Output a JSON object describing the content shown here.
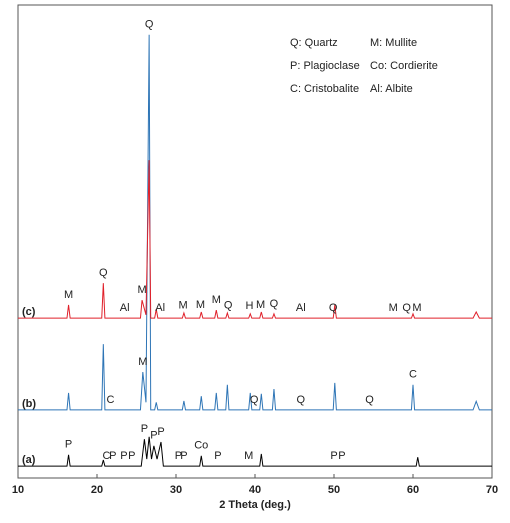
{
  "chart_data": {
    "type": "line",
    "xlabel": "2 Theta (deg.)",
    "xlim": [
      10,
      70
    ],
    "xticks": [
      10,
      20,
      30,
      40,
      50,
      60,
      70
    ],
    "ylim": [
      0,
      100
    ],
    "legend_entries": [
      "Q: Quartz",
      "M: Mullite",
      "P: Plagioclase",
      "Co: Cordierite",
      "C: Cristobalite",
      "Al: Albite"
    ],
    "series": [
      {
        "name": "(a)",
        "color": "#000000",
        "x": [
          10,
          16.2,
          16.4,
          16.6,
          20.6,
          20.8,
          21,
          25.6,
          26,
          26.3,
          26.6,
          26.9,
          27.2,
          27.6,
          28.1,
          28.4,
          33,
          33.2,
          33.4,
          40.6,
          40.8,
          41,
          60.4,
          60.6,
          60.8,
          70
        ],
        "values": [
          2.5,
          2.5,
          4.9,
          2.5,
          2.5,
          3.8,
          2.5,
          2.5,
          8.2,
          4,
          8.7,
          4,
          6.8,
          4,
          7.6,
          2.5,
          2.5,
          4.7,
          2.5,
          2.5,
          5.1,
          2.5,
          2.5,
          4.4,
          2.5,
          2.5
        ],
        "peak_labels": [
          {
            "label": "P",
            "x": 16.4
          },
          {
            "label": "C",
            "x": 21.2
          },
          {
            "label": "P",
            "x": 22
          },
          {
            "label": "P",
            "x": 23.4
          },
          {
            "label": "P",
            "x": 24.4
          },
          {
            "label": "P",
            "x": 26
          },
          {
            "label": "P",
            "x": 27.2
          },
          {
            "label": "P",
            "x": 28.1
          },
          {
            "label": "P",
            "x": 30.3
          },
          {
            "label": "P",
            "x": 31
          },
          {
            "label": "Co",
            "x": 33.2
          },
          {
            "label": "P",
            "x": 35.3
          },
          {
            "label": "M",
            "x": 39.2
          },
          {
            "label": "P",
            "x": 50
          },
          {
            "label": "P",
            "x": 51
          }
        ]
      },
      {
        "name": "(b)",
        "color": "#2e75b6",
        "x": [
          10,
          16.2,
          16.4,
          16.6,
          20.6,
          20.8,
          21,
          25.5,
          25.8,
          26.2,
          26.6,
          26.8,
          27.3,
          27.5,
          27.7,
          30.8,
          31,
          31.2,
          33,
          33.2,
          33.4,
          34.9,
          35.1,
          35.3,
          36.3,
          36.5,
          36.7,
          39.2,
          39.4,
          39.6,
          40.6,
          40.8,
          41,
          42.2,
          42.4,
          42.6,
          49.9,
          50.1,
          50.3,
          59.8,
          60,
          60.2,
          67.6,
          68,
          68.4,
          70
        ],
        "values": [
          14.4,
          14.4,
          18,
          14.4,
          14.4,
          28.3,
          14.4,
          14.4,
          22.4,
          16,
          93.7,
          14.4,
          14.4,
          16,
          14.4,
          14.4,
          16.3,
          14.4,
          14.4,
          17.3,
          14.4,
          14.4,
          18,
          14.4,
          14.4,
          19.7,
          14.4,
          14.4,
          18,
          14.4,
          14.4,
          17.8,
          14.4,
          14.4,
          18.8,
          14.4,
          14.4,
          20.1,
          14.4,
          14.4,
          19.7,
          14.4,
          14.4,
          16.2,
          14.4,
          14.4
        ],
        "peak_labels": [
          {
            "label": "C",
            "x": 21.7
          },
          {
            "label": "M",
            "x": 25.8
          },
          {
            "label": "Q",
            "x": 26.6
          },
          {
            "label": "Q",
            "x": 39.9
          },
          {
            "label": "Q",
            "x": 45.8
          },
          {
            "label": "Q",
            "x": 54.5
          },
          {
            "label": "C",
            "x": 60
          }
        ]
      },
      {
        "name": "(c)",
        "color": "#e0202a",
        "x": [
          10,
          16.2,
          16.4,
          16.6,
          20.6,
          20.8,
          21,
          25.5,
          25.7,
          26.2,
          26.6,
          26.8,
          27.3,
          27.5,
          27.7,
          30.8,
          31,
          31.2,
          33,
          33.2,
          33.4,
          34.9,
          35.1,
          35.3,
          36.3,
          36.5,
          36.7,
          39.2,
          39.4,
          39.6,
          40.6,
          40.8,
          41,
          42.2,
          42.4,
          42.6,
          49.9,
          50.1,
          50.3,
          59.8,
          60,
          60.2,
          67.6,
          68,
          68.4,
          70
        ],
        "values": [
          33.8,
          33.8,
          36.6,
          33.8,
          33.8,
          41.2,
          33.8,
          33.8,
          37.6,
          34.5,
          67.2,
          33.8,
          33.8,
          35.7,
          33.8,
          33.8,
          34.9,
          33.8,
          33.8,
          35.1,
          33.8,
          33.8,
          35.5,
          33.8,
          33.8,
          34.9,
          33.8,
          33.8,
          34.7,
          33.8,
          33.8,
          35.1,
          33.8,
          33.8,
          34.7,
          33.8,
          33.8,
          36.6,
          33.8,
          33.8,
          34.7,
          33.8,
          33.8,
          35.1,
          33.8,
          33.8
        ],
        "peak_labels": [
          {
            "label": "M",
            "x": 16.4
          },
          {
            "label": "Q",
            "x": 20.8
          },
          {
            "label": "Al",
            "x": 23.5
          },
          {
            "label": "M",
            "x": 25.7
          },
          {
            "label": "Al",
            "x": 28
          },
          {
            "label": "M",
            "x": 30.9
          },
          {
            "label": "M",
            "x": 33.1
          },
          {
            "label": "M",
            "x": 35.1
          },
          {
            "label": "Q",
            "x": 36.6
          },
          {
            "label": "H",
            "x": 39.3
          },
          {
            "label": "M",
            "x": 40.7
          },
          {
            "label": "Q",
            "x": 42.4
          },
          {
            "label": "Al",
            "x": 45.8
          },
          {
            "label": "Q",
            "x": 49.9
          },
          {
            "label": "M",
            "x": 57.5
          },
          {
            "label": "Q",
            "x": 59.2
          },
          {
            "label": "M",
            "x": 60.5
          }
        ]
      }
    ]
  }
}
